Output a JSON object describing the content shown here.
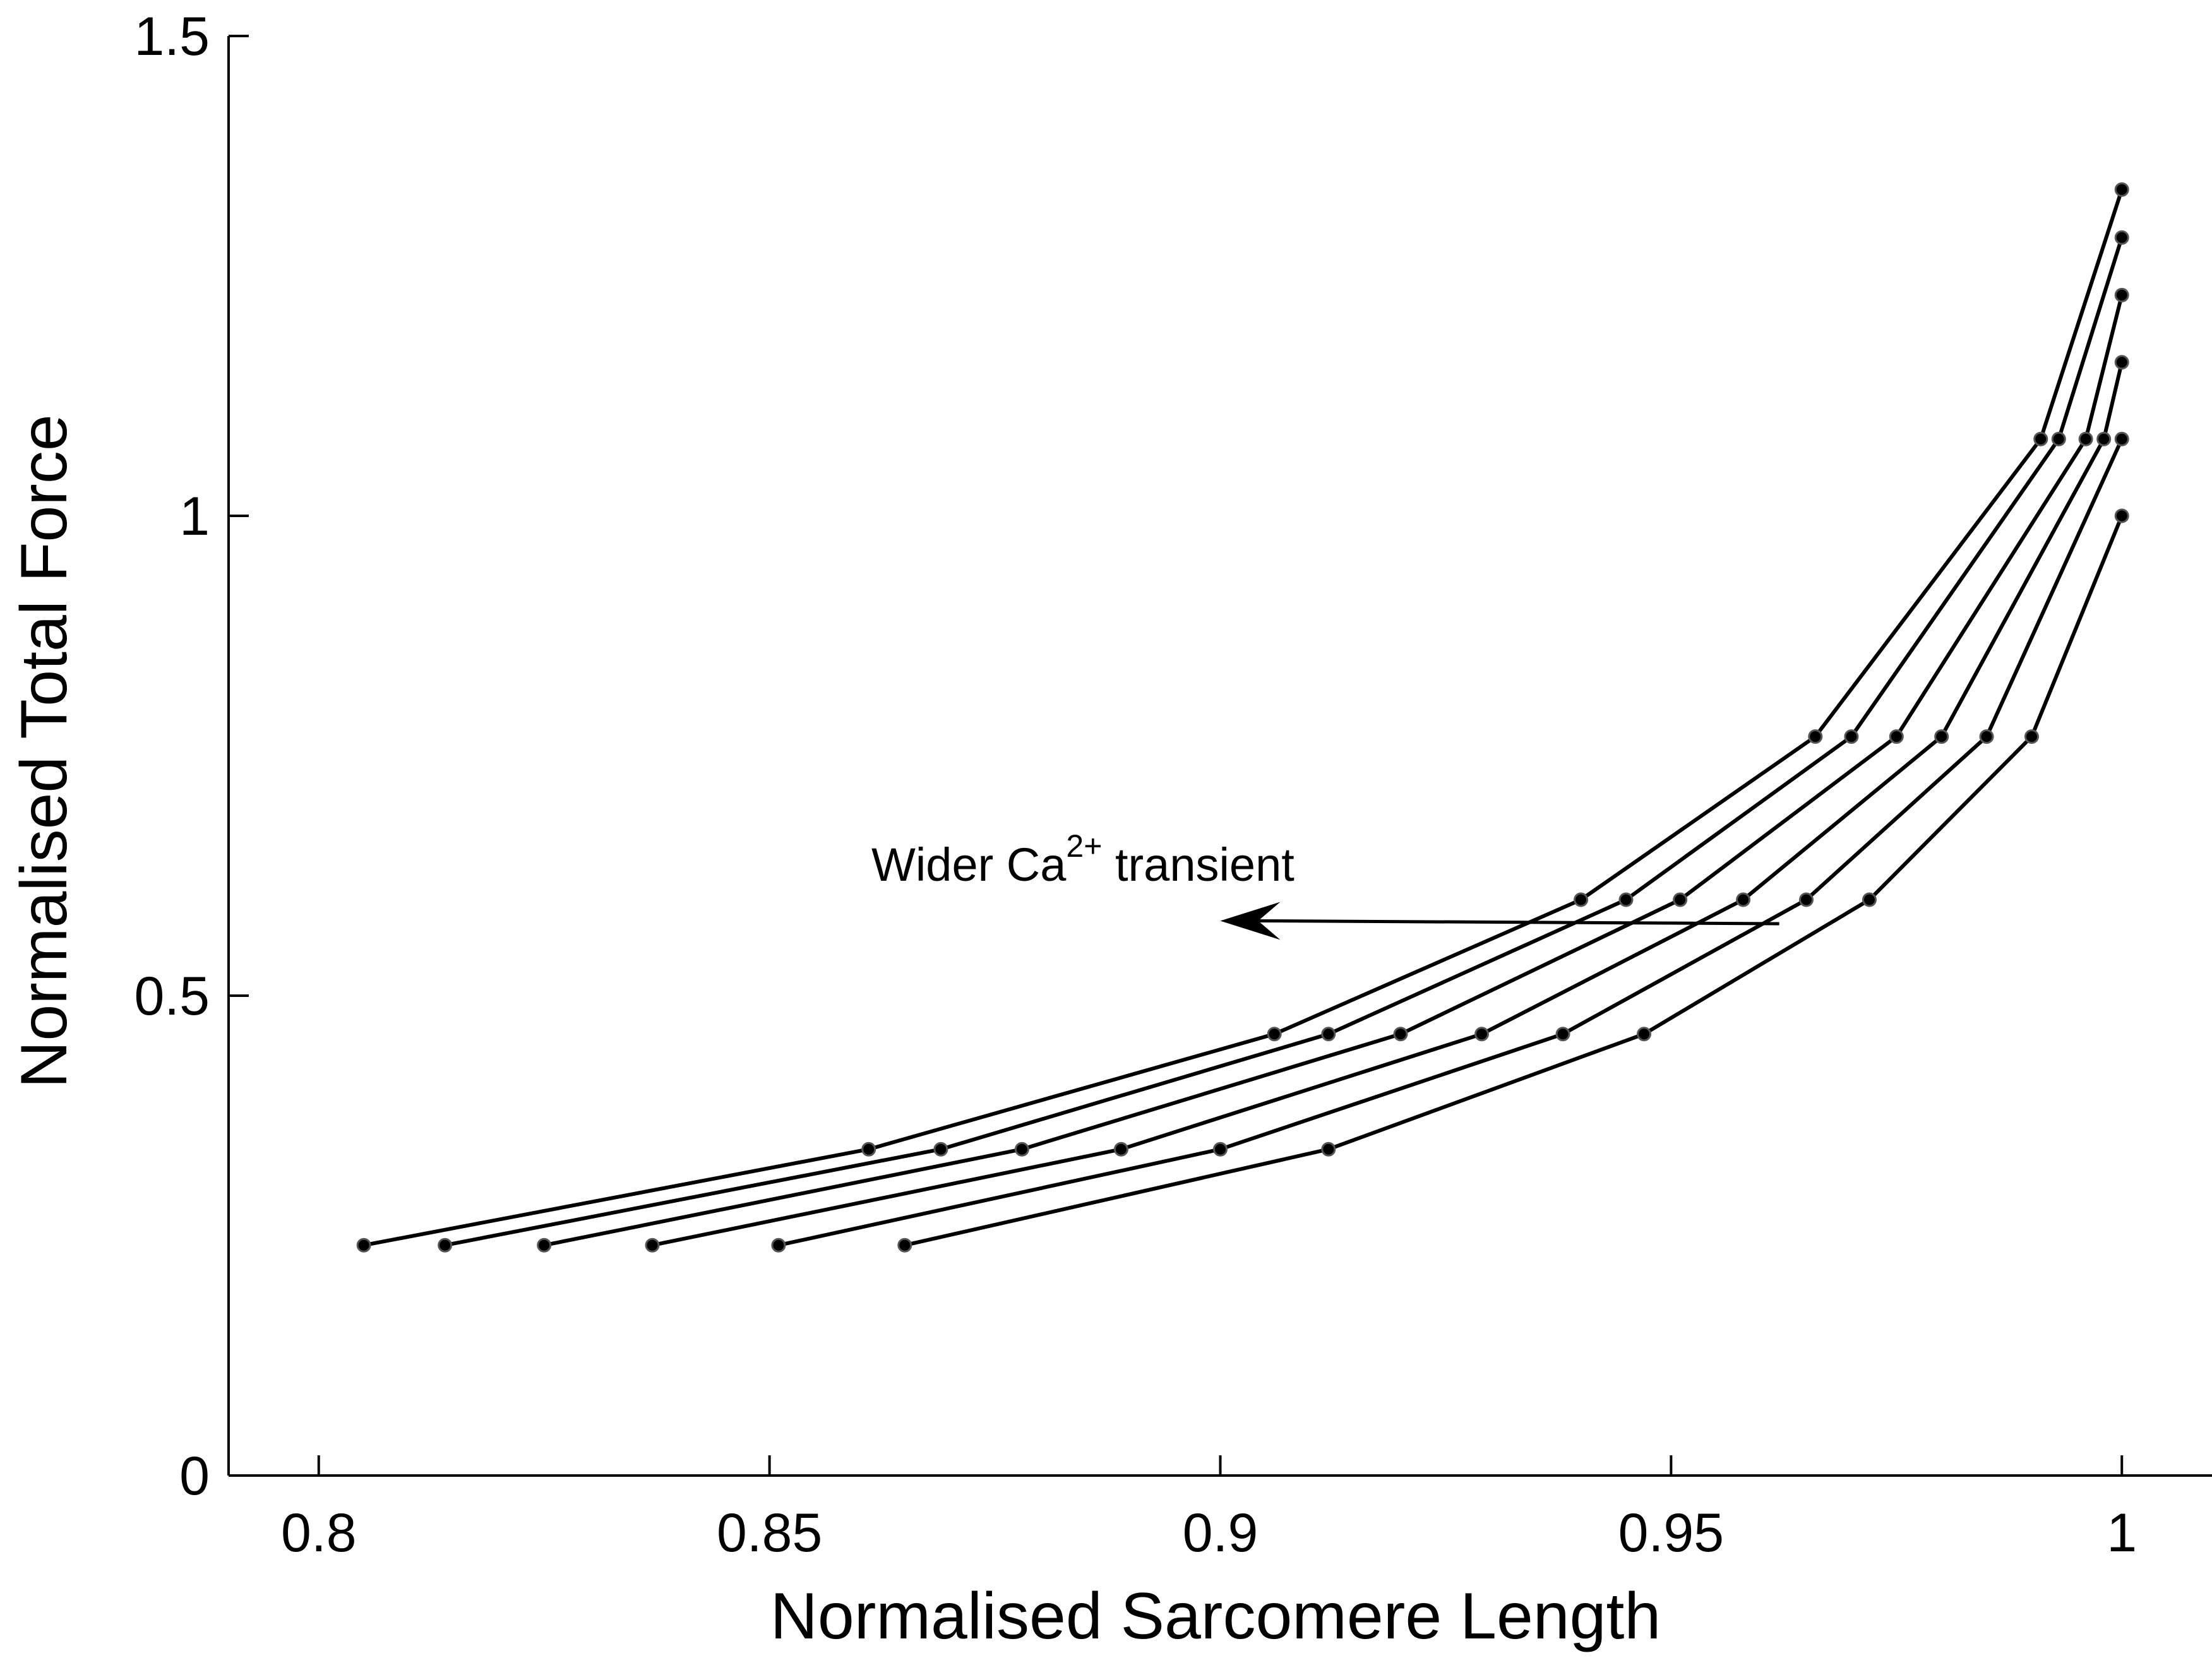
{
  "chart_data": {
    "type": "line",
    "title": "",
    "xlabel": "Normalised Sarcomere Length",
    "ylabel": "Normalised Total Force",
    "xlim": [
      0.79,
      1.01
    ],
    "ylim": [
      0,
      1.5
    ],
    "xticks": [
      0.8,
      0.85,
      0.9,
      0.95,
      1.0
    ],
    "xtick_labels": [
      "0.8",
      "0.85",
      "0.9",
      "0.95",
      "1"
    ],
    "yticks": [
      0,
      0.5,
      1.0,
      1.5
    ],
    "ytick_labels": [
      "0",
      "0.5",
      "1",
      "1.5"
    ],
    "grid": false,
    "marker": "dot",
    "line_color": "#000000",
    "annotation": {
      "text_prefix": "Wider Ca",
      "text_sup": "2+",
      "text_suffix": " transient",
      "arrow_from": [
        0.962,
        0.575
      ],
      "arrow_to": [
        0.9,
        0.578
      ]
    },
    "series": [
      {
        "x": [
          0.805,
          0.861,
          0.906,
          0.94,
          0.966,
          0.991,
          1.0
        ],
        "y": [
          0.24,
          0.34,
          0.46,
          0.6,
          0.77,
          1.08,
          1.34
        ]
      },
      {
        "x": [
          0.814,
          0.869,
          0.912,
          0.945,
          0.97,
          0.993,
          1.0
        ],
        "y": [
          0.24,
          0.34,
          0.46,
          0.6,
          0.77,
          1.08,
          1.29
        ]
      },
      {
        "x": [
          0.825,
          0.878,
          0.92,
          0.951,
          0.975,
          0.996,
          1.0
        ],
        "y": [
          0.24,
          0.34,
          0.46,
          0.6,
          0.77,
          1.08,
          1.23
        ]
      },
      {
        "x": [
          0.837,
          0.889,
          0.929,
          0.958,
          0.98,
          0.998,
          1.0
        ],
        "y": [
          0.24,
          0.34,
          0.46,
          0.6,
          0.77,
          1.08,
          1.16
        ]
      },
      {
        "x": [
          0.851,
          0.9,
          0.938,
          0.965,
          0.985,
          1.0
        ],
        "y": [
          0.24,
          0.34,
          0.46,
          0.6,
          0.77,
          1.08
        ]
      },
      {
        "x": [
          0.865,
          0.912,
          0.947,
          0.972,
          0.99,
          1.0
        ],
        "y": [
          0.24,
          0.34,
          0.46,
          0.6,
          0.77,
          1.0
        ]
      }
    ]
  }
}
